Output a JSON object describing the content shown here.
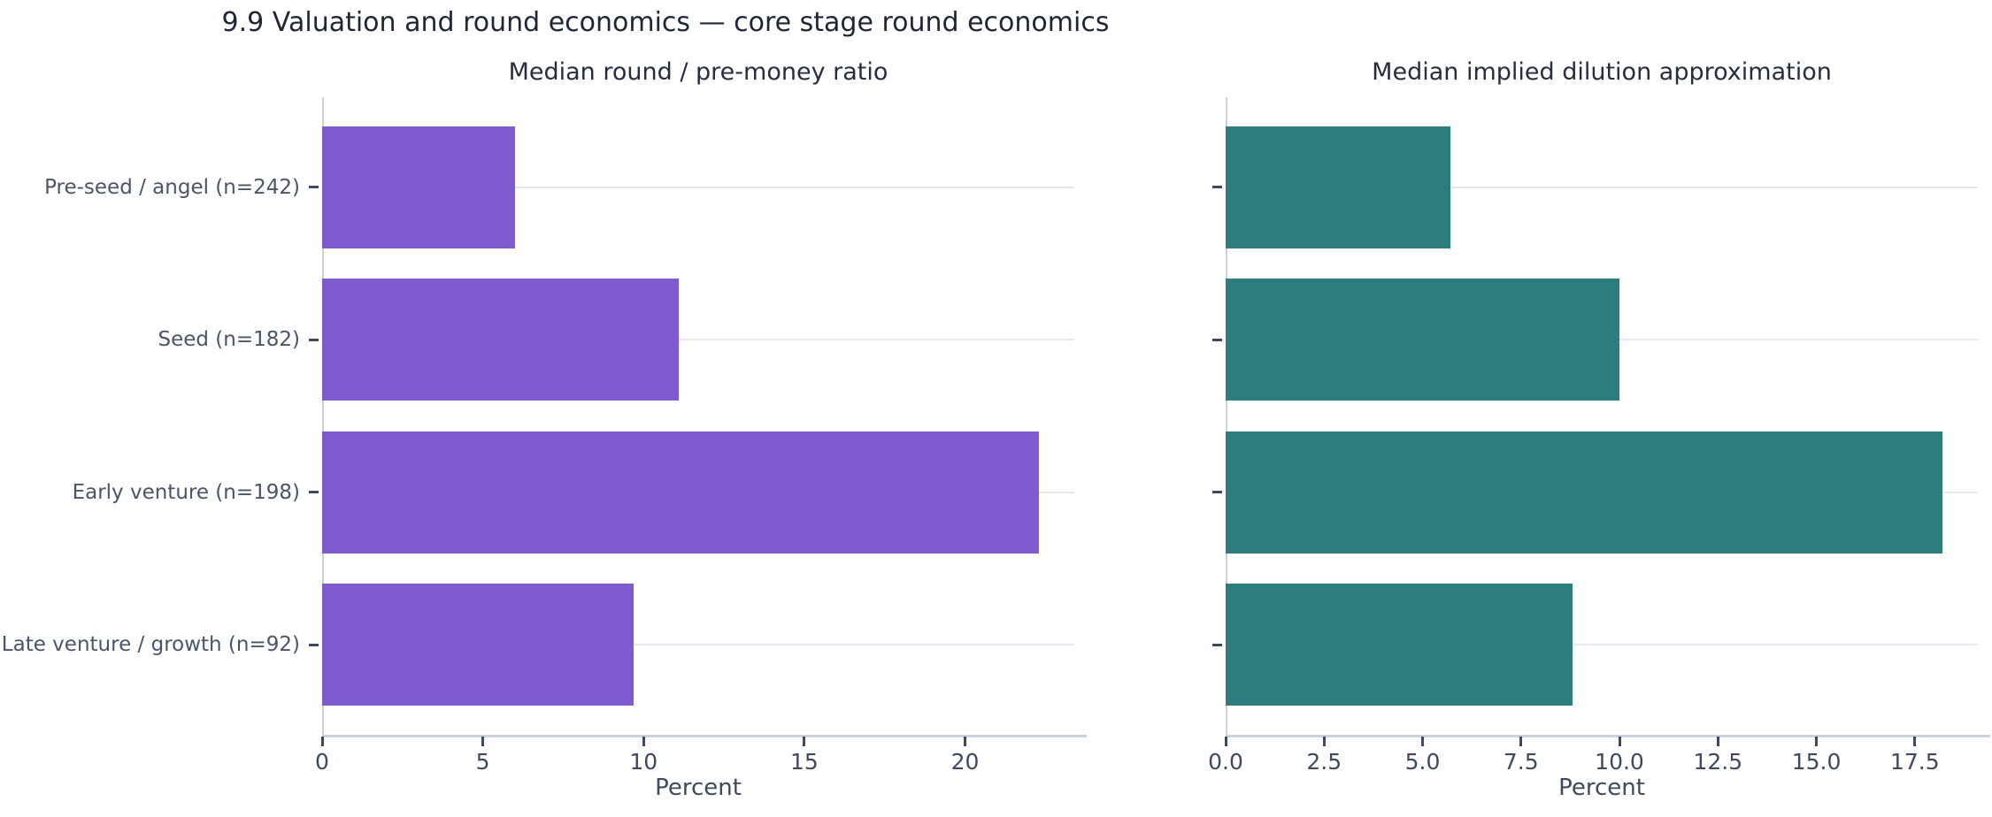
{
  "figure": {
    "title": "9.9 Valuation and round economics — core stage round economics"
  },
  "chart_data": [
    {
      "type": "bar",
      "orientation": "horizontal",
      "title": "Median round / pre-money ratio",
      "xlabel": "Percent",
      "categories": [
        "Pre-seed / angel (n=242)",
        "Seed (n=182)",
        "Early venture (n=198)",
        "Late venture / growth (n=92)"
      ],
      "values": [
        6.0,
        11.1,
        22.3,
        9.7
      ],
      "xlim": [
        0,
        23.4
      ],
      "xticks": [
        0,
        5,
        10,
        15,
        20
      ],
      "xtick_labels": [
        "0",
        "5",
        "10",
        "15",
        "20"
      ],
      "bar_color": "#7E5CD0",
      "grid": "y-gridlines on",
      "legend": "none",
      "show_category_labels": true
    },
    {
      "type": "bar",
      "orientation": "horizontal",
      "title": "Median implied dilution approximation",
      "xlabel": "Percent",
      "categories": [
        "Pre-seed / angel (n=242)",
        "Seed (n=182)",
        "Early venture (n=198)",
        "Late venture / growth (n=92)"
      ],
      "values": [
        5.7,
        10.0,
        18.2,
        8.8
      ],
      "xlim": [
        0,
        19.1
      ],
      "xticks": [
        0,
        2.5,
        5,
        7.5,
        10,
        12.5,
        15,
        17.5
      ],
      "xtick_labels": [
        "0.0",
        "2.5",
        "5.0",
        "7.5",
        "10.0",
        "12.5",
        "15.0",
        "17.5"
      ],
      "bar_color": "#2C7D7C",
      "grid": "y-gridlines on",
      "legend": "none",
      "show_category_labels": false
    }
  ],
  "colors": {
    "background": "#FFFFFF",
    "purple_bar": "#7E5CD0",
    "teal_bar": "#2C7D7C",
    "gridline": "#E4E8F1",
    "spine": "#C9D2DF",
    "tick_mark": "#3E4A5B",
    "tick_label": "#3E4A5B",
    "category_label": "#4A5568",
    "title_text": "#1F2633",
    "subtitle_text": "#262E3D"
  }
}
